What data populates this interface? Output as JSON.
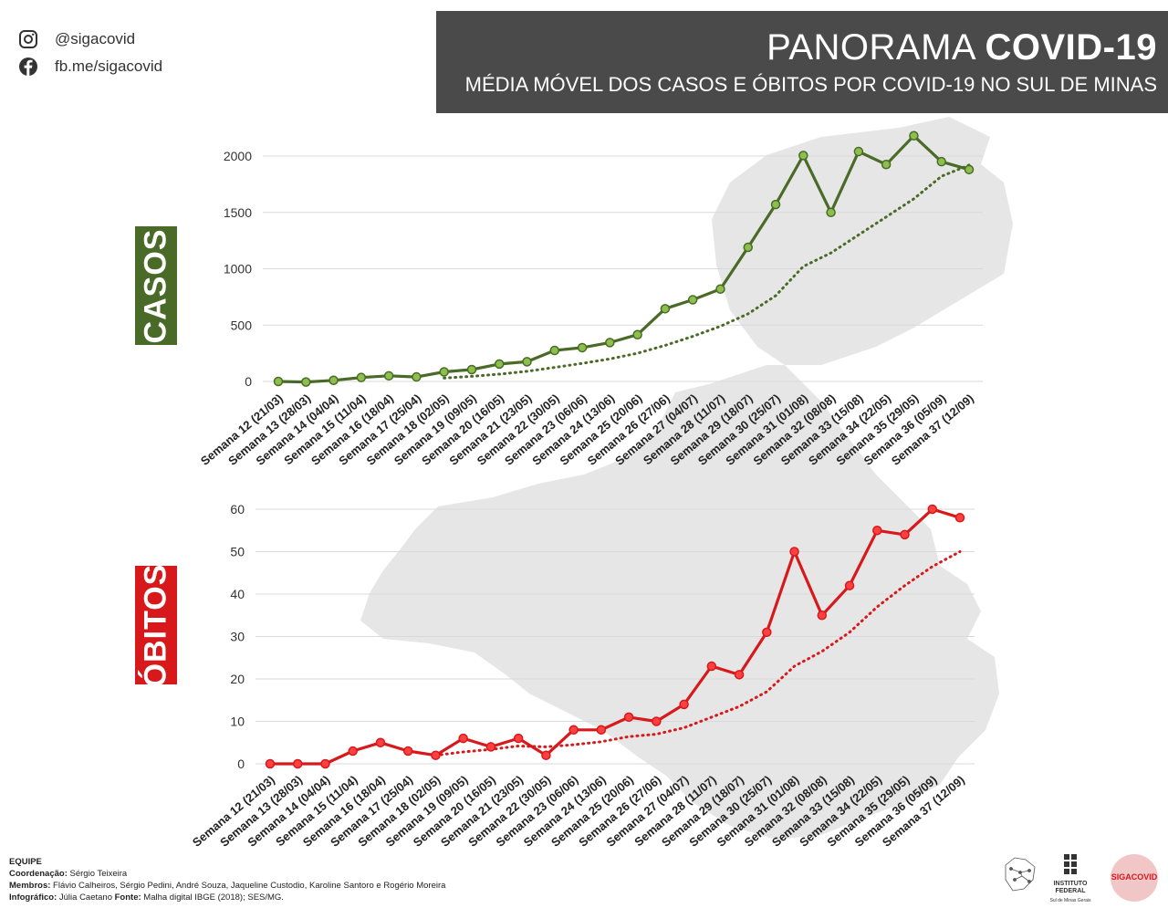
{
  "social": {
    "instagram_icon": "instagram-icon",
    "instagram": "@sigacovid",
    "facebook_icon": "facebook-icon",
    "facebook": "fb.me/sigacovid"
  },
  "header": {
    "title_light": "PANORAMA ",
    "title_bold": "COVID-19",
    "subtitle": "MÉDIA MÓVEL DOS CASOS E ÓBITOS POR COVID-19 NO SUL DE MINAS"
  },
  "labels": {
    "casos": "CASOS",
    "obitos": "ÓBITOS"
  },
  "colors": {
    "casos_line": "#4a6b27",
    "casos_marker": "#8cbf4e",
    "obitos_line": "#d7191c",
    "obitos_marker": "#ff4040",
    "header_bg": "#4a4a4a",
    "map": "#e6e6e6"
  },
  "chart_data": [
    {
      "type": "line",
      "categories": [
        "Semana 12 (21/03)",
        "Semana 13 (28/03)",
        "Semana 14 (04/04)",
        "Semana 15 (11/04)",
        "Semana 16 (18/04)",
        "Semana 17 (25/04)",
        "Semana 18 (02/05)",
        "Semana 19 (09/05)",
        "Semana 20 (16/05)",
        "Semana 21 (23/05)",
        "Semana 22 (30/05)",
        "Semana 23 (06/06)",
        "Semana 24 (13/06)",
        "Semana 25 (20/06)",
        "Semana 26 (27/06)",
        "Semana 27 (04/07)",
        "Semana 28 (11/07)",
        "Semana 29 (18/07)",
        "Semana 30 (25/07)",
        "Semana 31 (01/08)",
        "Semana 32 (08/08)",
        "Semana 33 (15/08)",
        "Semana 34 (22/05)",
        "Semana 35 (29/05)",
        "Semana 36 (05/09)",
        "Semana 37 (12/09)"
      ],
      "series": [
        {
          "values": [
            0,
            -5,
            10,
            35,
            50,
            40,
            85,
            105,
            155,
            175,
            275,
            300,
            345,
            415,
            645,
            725,
            820,
            1190,
            1570,
            2005,
            1500,
            2040,
            1925,
            2180,
            1950,
            1880
          ]
        },
        {
          "style": "dotted",
          "values": [
            null,
            null,
            null,
            null,
            null,
            null,
            30,
            45,
            65,
            90,
            125,
            160,
            200,
            250,
            320,
            400,
            490,
            600,
            760,
            1020,
            1140,
            1300,
            1460,
            1620,
            1820,
            1920
          ]
        }
      ],
      "yticks": [
        0,
        500,
        1000,
        1500,
        2000
      ],
      "ylim": [
        0,
        2000
      ]
    },
    {
      "type": "line",
      "categories": [
        "Semana 12 (21/03)",
        "Semana 13 (28/03)",
        "Semana 14 (04/04)",
        "Semana 15 (11/04)",
        "Semana 16 (18/04)",
        "Semana 17 (25/04)",
        "Semana 18 (02/05)",
        "Semana 19 (09/05)",
        "Semana 20 (16/05)",
        "Semana 21 (23/05)",
        "Semana 22 (30/05)",
        "Semana 23 (06/06)",
        "Semana 24 (13/06)",
        "Semana 25 (20/06)",
        "Semana 26 (27/06)",
        "Semana 27 (04/07)",
        "Semana 28 (11/07)",
        "Semana 29 (18/07)",
        "Semana 30 (25/07)",
        "Semana 31 (01/08)",
        "Semana 32 (08/08)",
        "Semana 33 (15/08)",
        "Semana 34 (22/05)",
        "Semana 35 (29/05)",
        "Semana 36 (05/09)",
        "Semana 37 (12/09)"
      ],
      "series": [
        {
          "values": [
            0,
            0,
            0,
            3,
            5,
            3,
            2,
            6,
            4,
            6,
            2,
            8,
            8,
            11,
            10,
            14,
            23,
            21,
            31,
            50,
            35,
            42,
            55,
            54,
            60,
            58
          ]
        },
        {
          "style": "dotted",
          "values": [
            null,
            null,
            null,
            null,
            null,
            null,
            2,
            2.8,
            3.4,
            4.2,
            4,
            4.5,
            5.2,
            6.4,
            7,
            8.5,
            11,
            13.5,
            17,
            23,
            26.5,
            31,
            37,
            42,
            46.5,
            50
          ]
        }
      ],
      "yticks": [
        0,
        10,
        20,
        30,
        40,
        50,
        60
      ],
      "ylim": [
        0,
        60
      ]
    }
  ],
  "footer": {
    "heading": "EQUIPE",
    "coord_label": "Coordenação:",
    "coord": " Sérgio Teixeira",
    "members_label": "Membros:",
    "members": " Flávio Calheiros, Sérgio Pedini, André Souza, Jaqueline Custodio, Karoline Santoro e Rogério Moreira",
    "info_label": "Infográfico:",
    "info": " Júlia Caetano ",
    "source_label": "Fonte:",
    "source": " Malha digital IBGE (2018); SES/MG."
  },
  "logos": {
    "logo1": "network-map-logo",
    "institute_line1": "INSTITUTO",
    "institute_line2": "FEDERAL",
    "institute_line3": "Sul de Minas Gerais",
    "siga_logo": "SIGACOVID"
  }
}
